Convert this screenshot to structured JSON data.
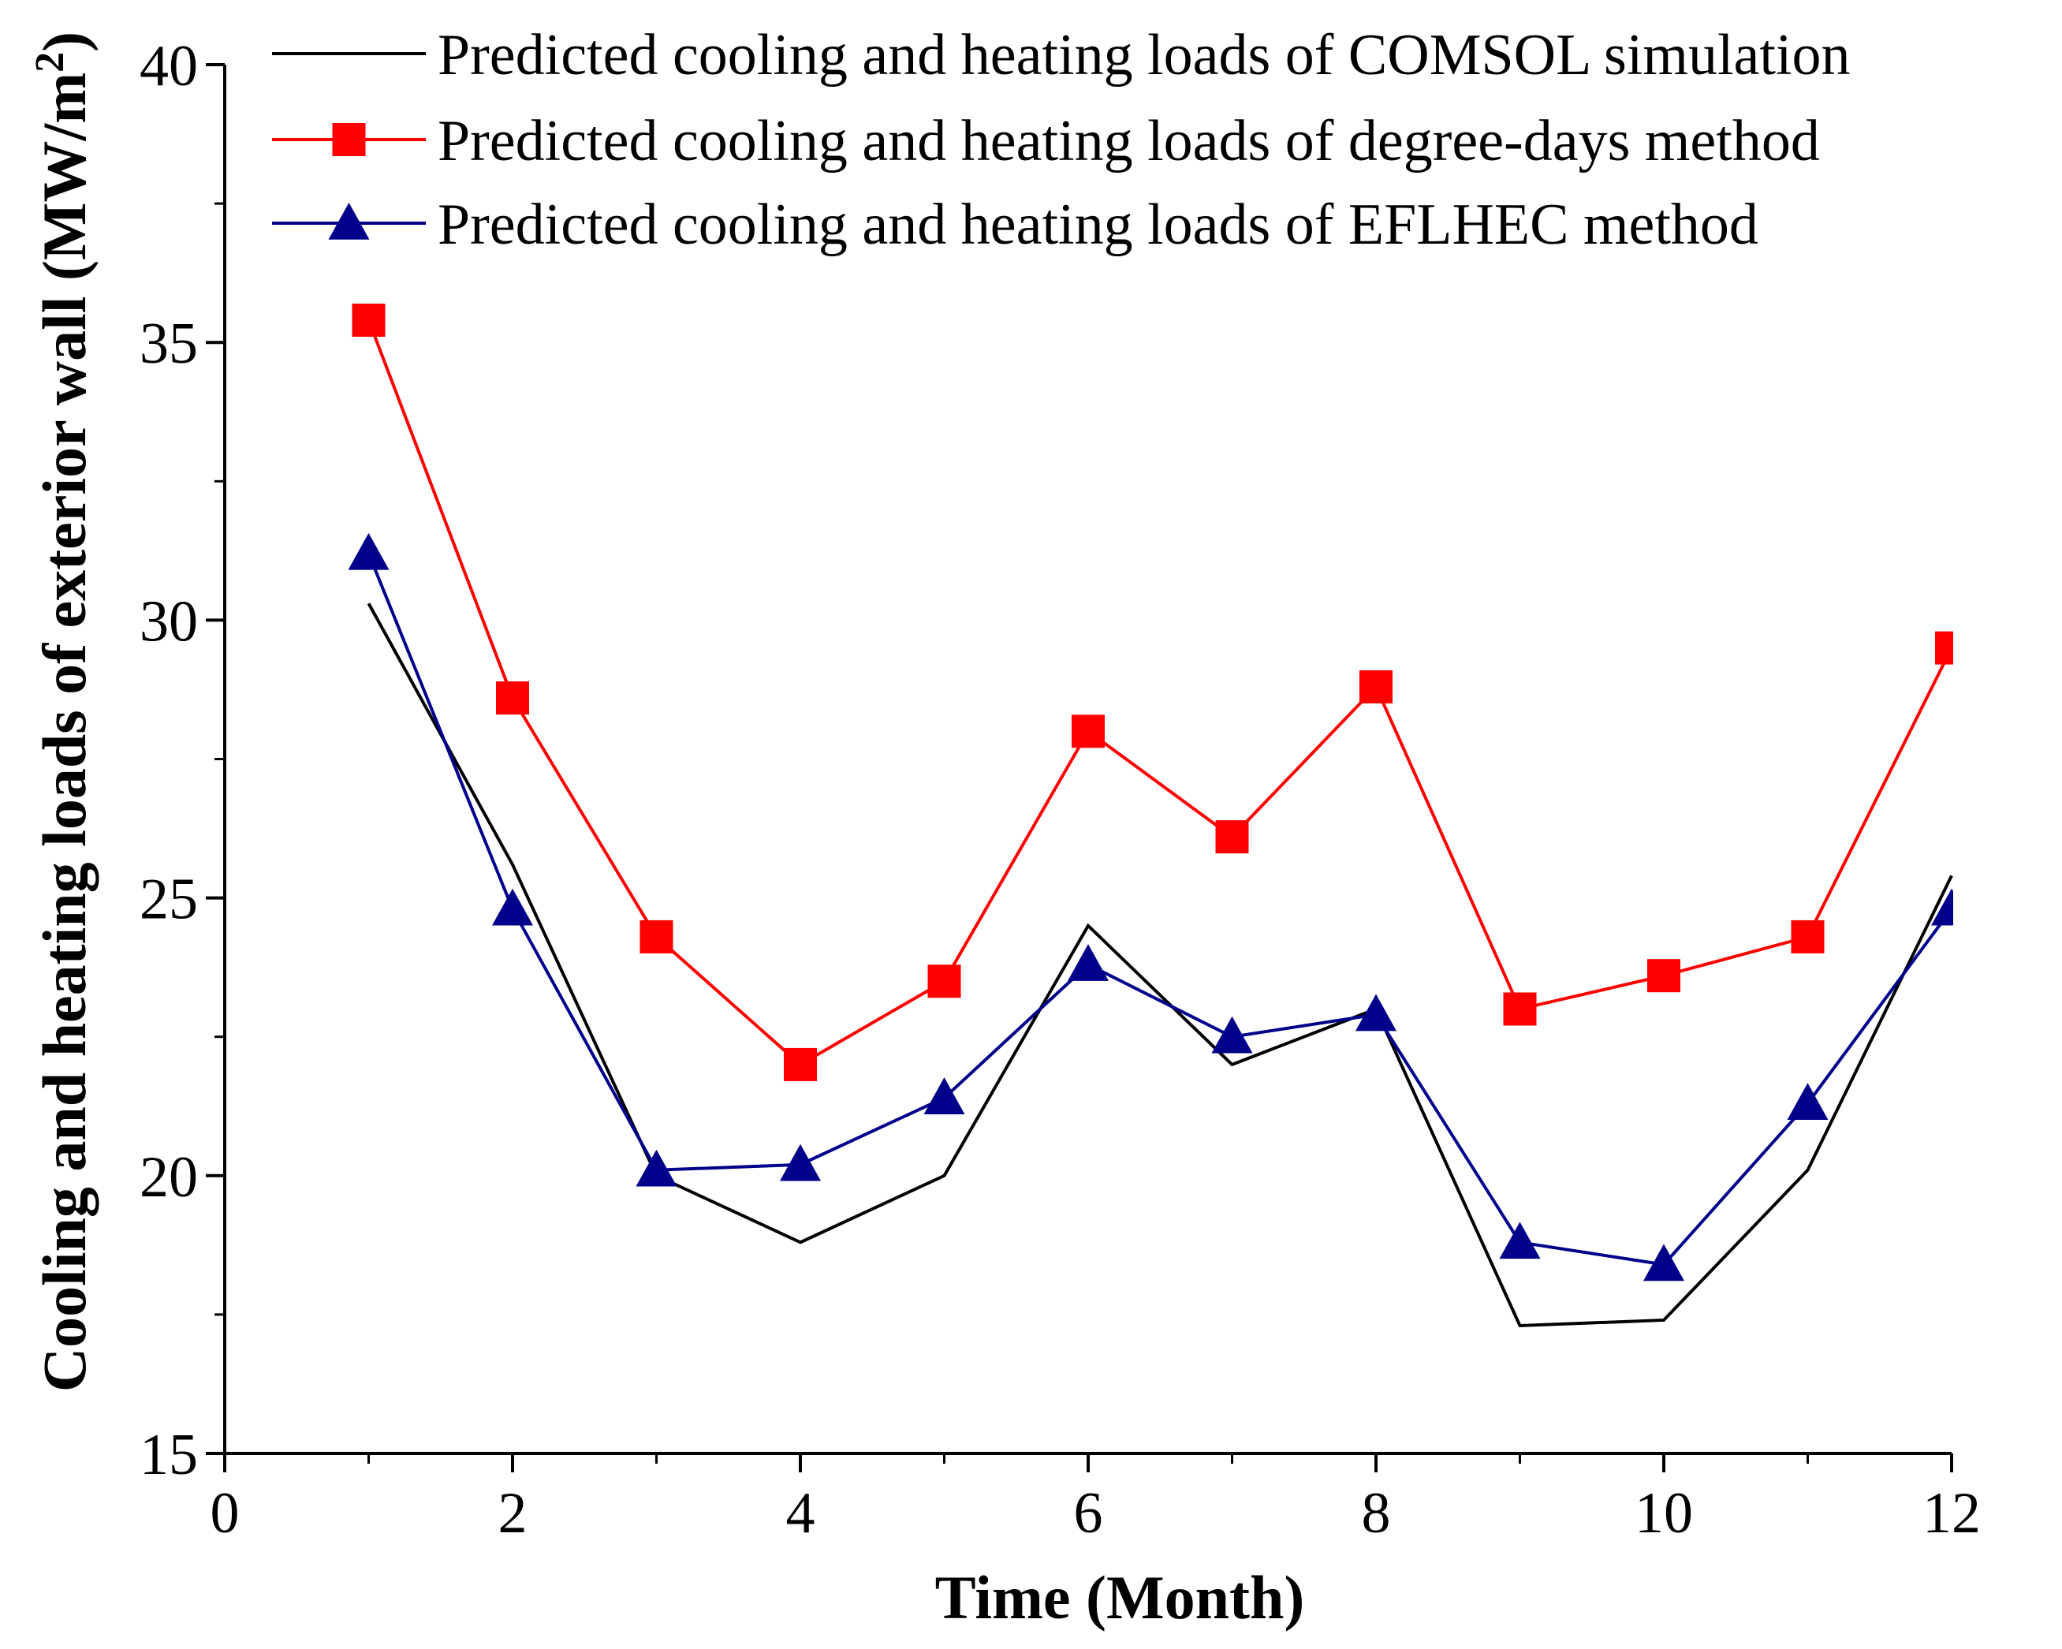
{
  "chart_data": {
    "type": "line",
    "title": "",
    "xlabel": "Time (Month)",
    "ylabel": "Cooling and heating loads of exterior wall (MW/m",
    "ylabel_sup": "2",
    "ylabel_close": ")",
    "xlim": [
      0,
      12
    ],
    "ylim": [
      15,
      40
    ],
    "xticks": [
      0,
      2,
      4,
      6,
      8,
      10,
      12
    ],
    "yticks": [
      15,
      20,
      25,
      30,
      35,
      40
    ],
    "grid": false,
    "legend_position": "top",
    "x": [
      1,
      2,
      3,
      4,
      5,
      6,
      7,
      8,
      9,
      10,
      11,
      12
    ],
    "series": [
      {
        "name": "Predicted cooling and heating loads of COMSOL simulation",
        "color": "#000000",
        "marker": "none",
        "values": [
          30.3,
          25.6,
          20.0,
          18.8,
          20.0,
          24.5,
          22.0,
          23.0,
          17.3,
          17.4,
          20.1,
          25.4
        ]
      },
      {
        "name": "Predicted cooling and heating loads of degree-days method",
        "color": "#ff0000",
        "marker": "square",
        "values": [
          35.4,
          28.6,
          24.3,
          22.0,
          23.5,
          28.0,
          26.1,
          28.8,
          23.0,
          23.6,
          24.3,
          29.5
        ]
      },
      {
        "name": "Predicted cooling and heating loads of EFLHEC method",
        "color": "#00008b",
        "marker": "triangle",
        "values": [
          31.2,
          24.8,
          20.1,
          20.2,
          21.4,
          23.8,
          22.5,
          22.9,
          18.8,
          18.4,
          21.3,
          24.8
        ]
      }
    ]
  }
}
